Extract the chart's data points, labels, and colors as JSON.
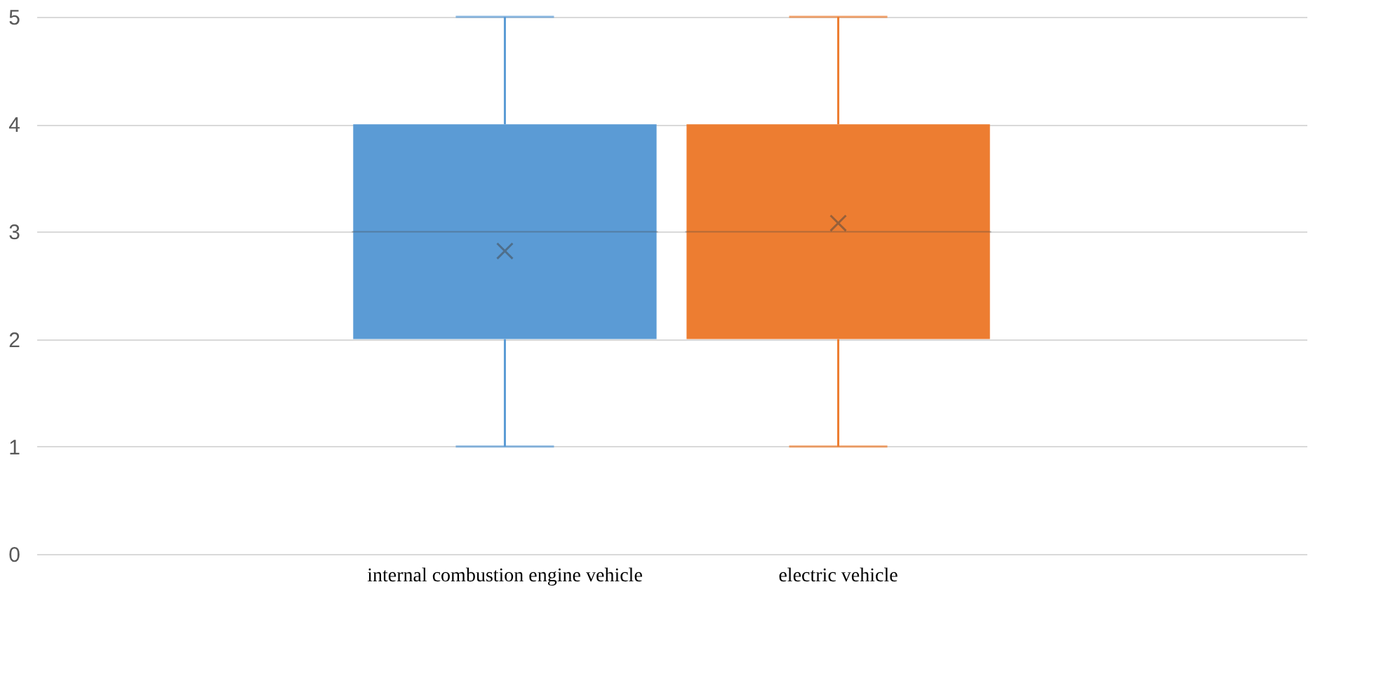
{
  "chart_data": {
    "type": "box",
    "categories": [
      "internal combustion engine vehicle",
      "electric vehicle"
    ],
    "colors": [
      "#5b9bd5",
      "#ed7d31"
    ],
    "boxes": [
      {
        "low": 1,
        "q1": 2,
        "median": 3,
        "q3": 4,
        "high": 5,
        "mean": 2.82
      },
      {
        "low": 1,
        "q1": 2,
        "median": 3,
        "q3": 4,
        "high": 5,
        "mean": 3.08
      }
    ],
    "ylim": [
      0,
      5
    ],
    "yticks": [
      0,
      1,
      2,
      3,
      4,
      5
    ],
    "grid": "y"
  }
}
